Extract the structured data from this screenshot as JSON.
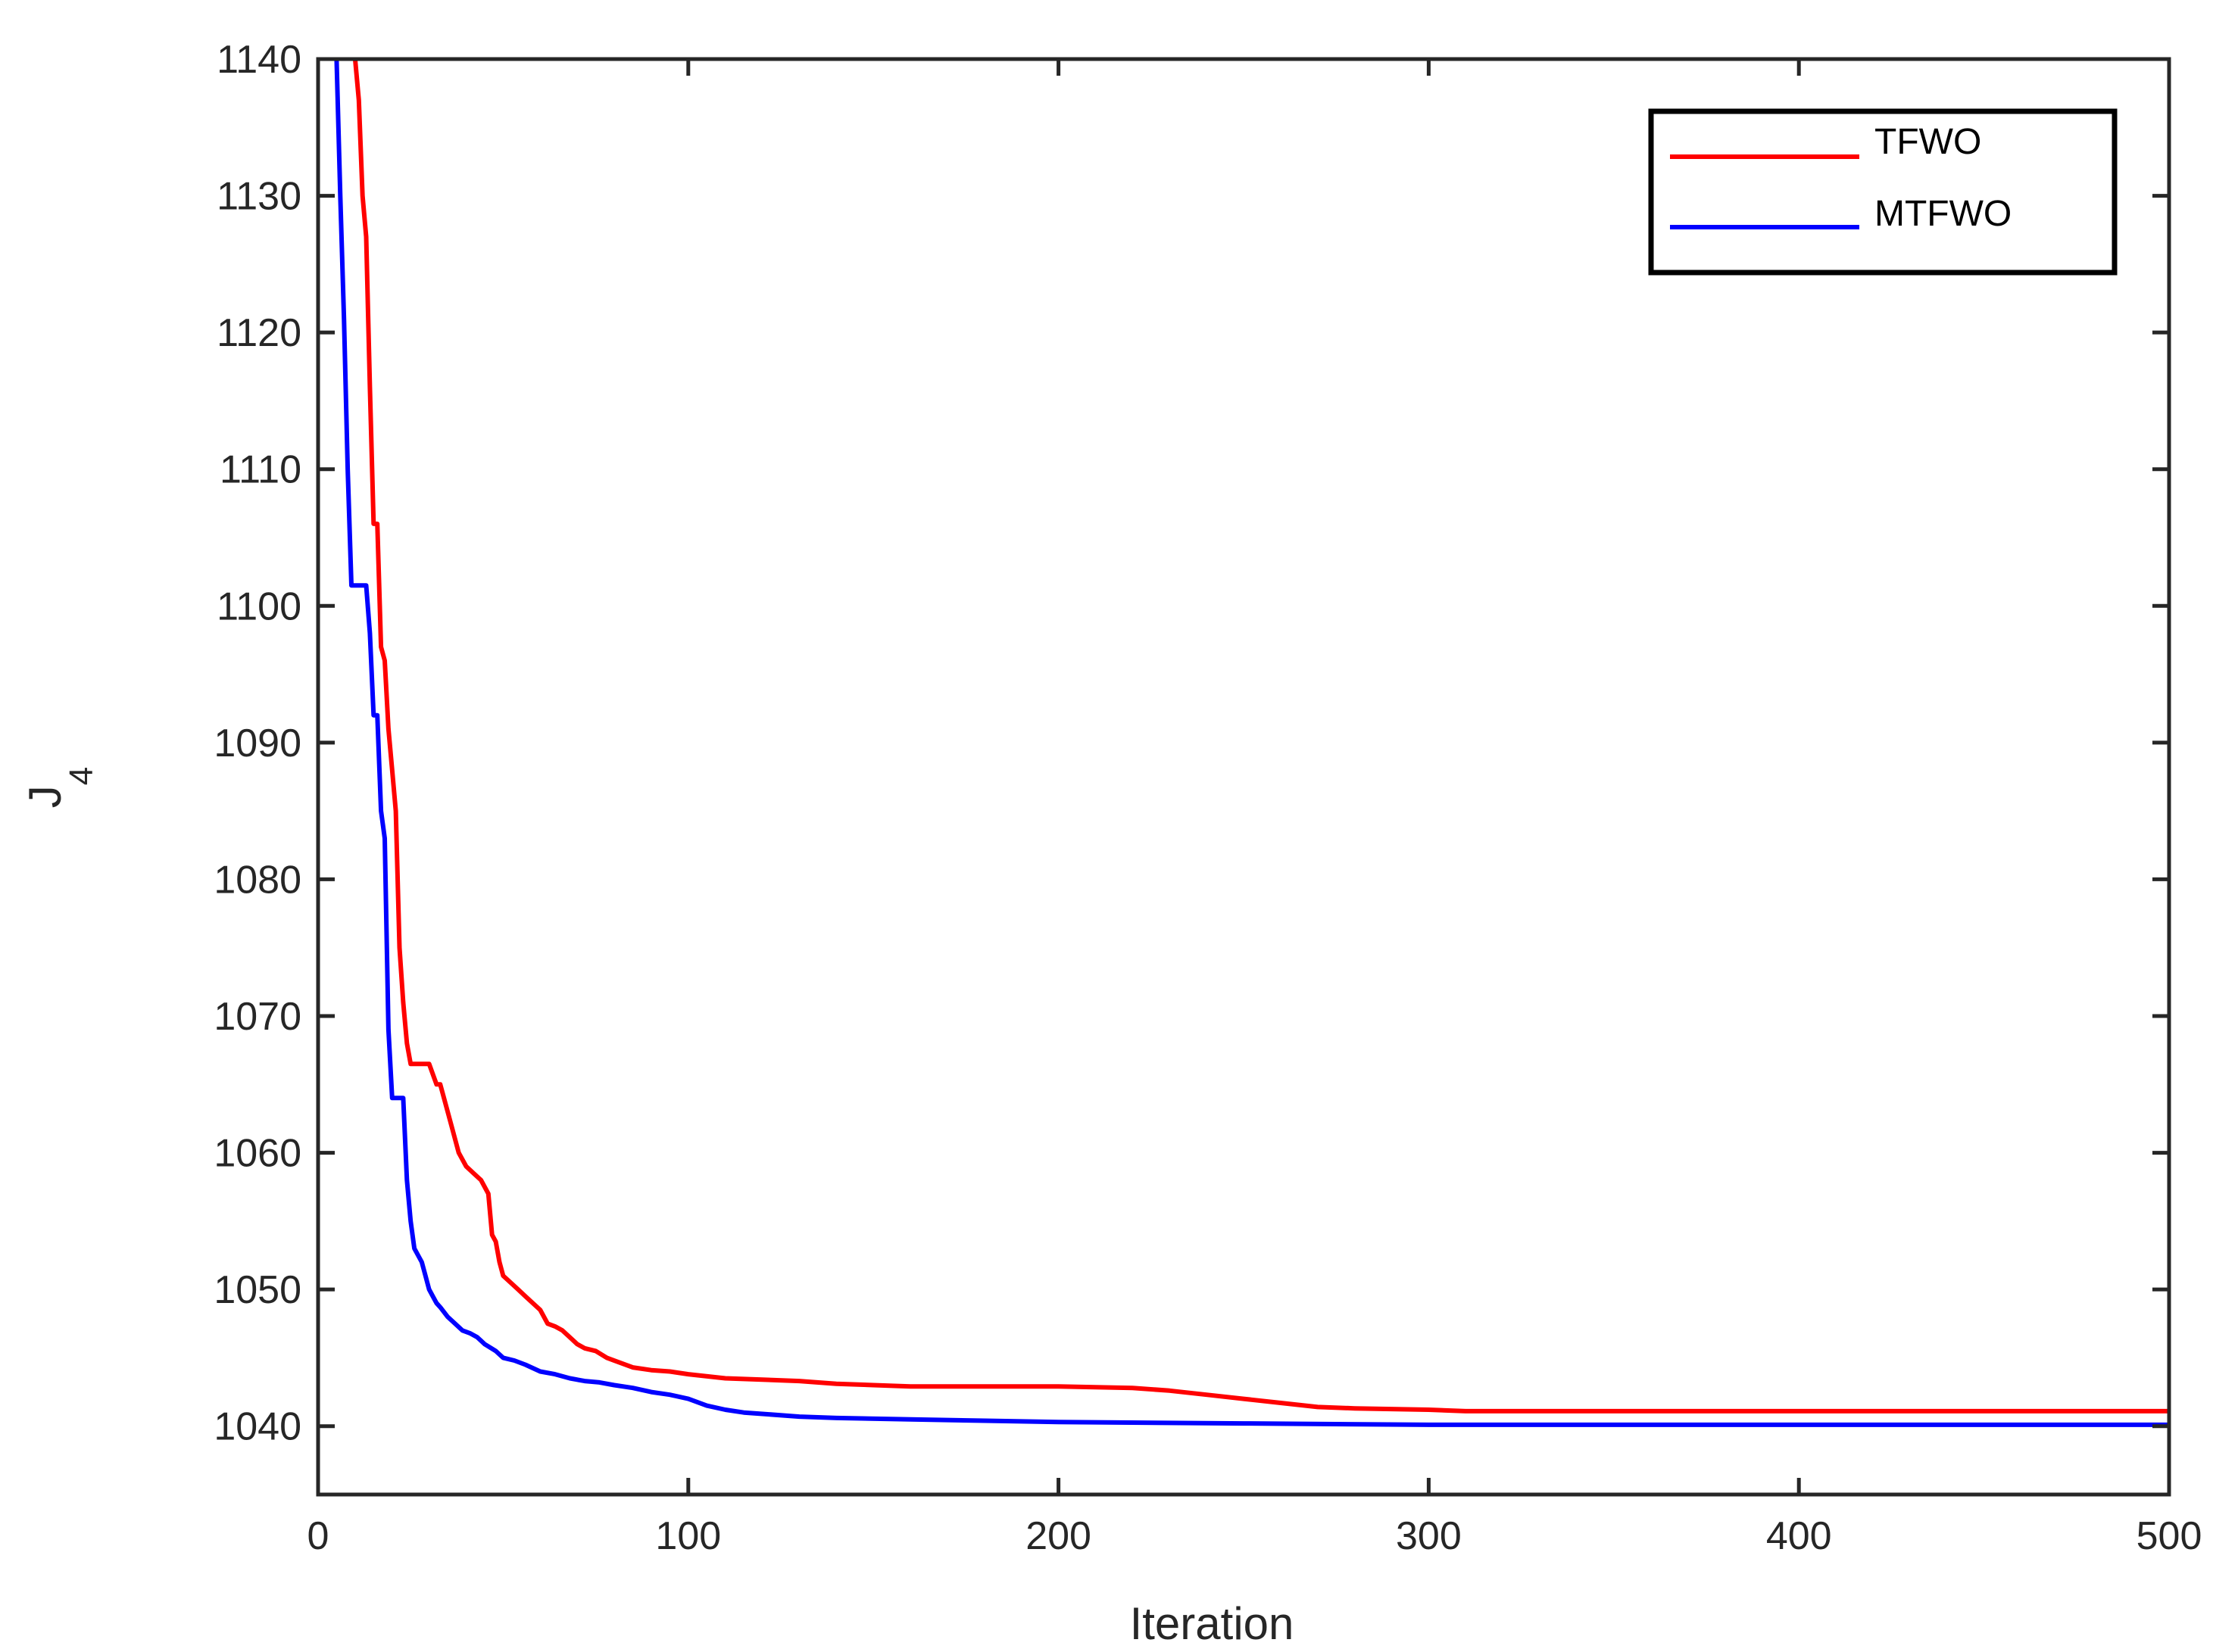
{
  "chart_data": {
    "type": "line",
    "xlabel": "Iteration",
    "ylabel": "J",
    "ylabel_subscript": "4",
    "xlim": [
      0,
      500
    ],
    "ylim": [
      1035,
      1140
    ],
    "xticks": [
      0,
      100,
      200,
      300,
      400,
      500
    ],
    "yticks": [
      1040,
      1050,
      1060,
      1070,
      1080,
      1090,
      1100,
      1110,
      1120,
      1130,
      1140
    ],
    "grid": false,
    "legend_position": "top-right",
    "series": [
      {
        "name": "TFWO",
        "color": "#ff0000",
        "x": [
          10,
          11,
          12,
          13,
          14,
          15,
          16,
          17,
          18,
          19,
          20,
          21,
          22,
          23,
          24,
          25,
          26,
          28,
          30,
          32,
          33,
          34,
          35,
          36,
          38,
          40,
          42,
          44,
          46,
          47,
          48,
          49,
          50,
          52,
          54,
          56,
          58,
          60,
          62,
          64,
          66,
          68,
          70,
          72,
          75,
          78,
          80,
          85,
          90,
          95,
          100,
          110,
          120,
          130,
          140,
          150,
          160,
          180,
          200,
          220,
          230,
          240,
          250,
          260,
          270,
          280,
          300,
          310,
          320,
          350,
          400,
          450,
          500
        ],
        "y": [
          1140,
          1137,
          1130,
          1127,
          1116,
          1106,
          1106,
          1097,
          1096,
          1091,
          1088,
          1085,
          1075,
          1071,
          1068,
          1066.5,
          1066.5,
          1066.5,
          1066.5,
          1065,
          1065,
          1064,
          1063,
          1062,
          1060,
          1059,
          1058.5,
          1058,
          1057,
          1054,
          1053.5,
          1052,
          1051,
          1050.5,
          1050,
          1049.5,
          1049,
          1048.5,
          1047.5,
          1047.3,
          1047,
          1046.5,
          1046,
          1045.7,
          1045.5,
          1045,
          1044.8,
          1044.3,
          1044.1,
          1044,
          1043.8,
          1043.5,
          1043.4,
          1043.3,
          1043.1,
          1043,
          1042.9,
          1042.9,
          1042.9,
          1042.8,
          1042.6,
          1042.3,
          1042,
          1041.7,
          1041.4,
          1041.3,
          1041.2,
          1041.1,
          1041.1,
          1041.1,
          1041.1,
          1041.1,
          1041.1
        ]
      },
      {
        "name": "MTFWO",
        "color": "#0000ff",
        "x": [
          5,
          6,
          7,
          8,
          9,
          10,
          12,
          13,
          14,
          15,
          16,
          17,
          18,
          19,
          20,
          21,
          22,
          23,
          24,
          25,
          26,
          27,
          28,
          29,
          30,
          31,
          32,
          33,
          35,
          37,
          39,
          41,
          43,
          45,
          48,
          50,
          53,
          56,
          60,
          64,
          68,
          72,
          76,
          80,
          85,
          90,
          95,
          100,
          105,
          110,
          115,
          120,
          130,
          140,
          160,
          180,
          200,
          250,
          300,
          350,
          400,
          450,
          500
        ],
        "y": [
          1140,
          1130,
          1121,
          1110,
          1101.5,
          1101.5,
          1101.5,
          1101.5,
          1098,
          1092,
          1092,
          1085,
          1083,
          1069,
          1064,
          1064,
          1064,
          1064,
          1058,
          1055,
          1053,
          1052.5,
          1052,
          1051,
          1050,
          1049.5,
          1049,
          1048.7,
          1048,
          1047.5,
          1047,
          1046.8,
          1046.5,
          1046,
          1045.5,
          1045,
          1044.8,
          1044.5,
          1044,
          1043.8,
          1043.5,
          1043.3,
          1043.2,
          1043,
          1042.8,
          1042.5,
          1042.3,
          1042,
          1041.5,
          1041.2,
          1041,
          1040.9,
          1040.7,
          1040.6,
          1040.5,
          1040.4,
          1040.3,
          1040.2,
          1040.1,
          1040.1,
          1040.1,
          1040.1,
          1040.1
        ]
      }
    ]
  }
}
